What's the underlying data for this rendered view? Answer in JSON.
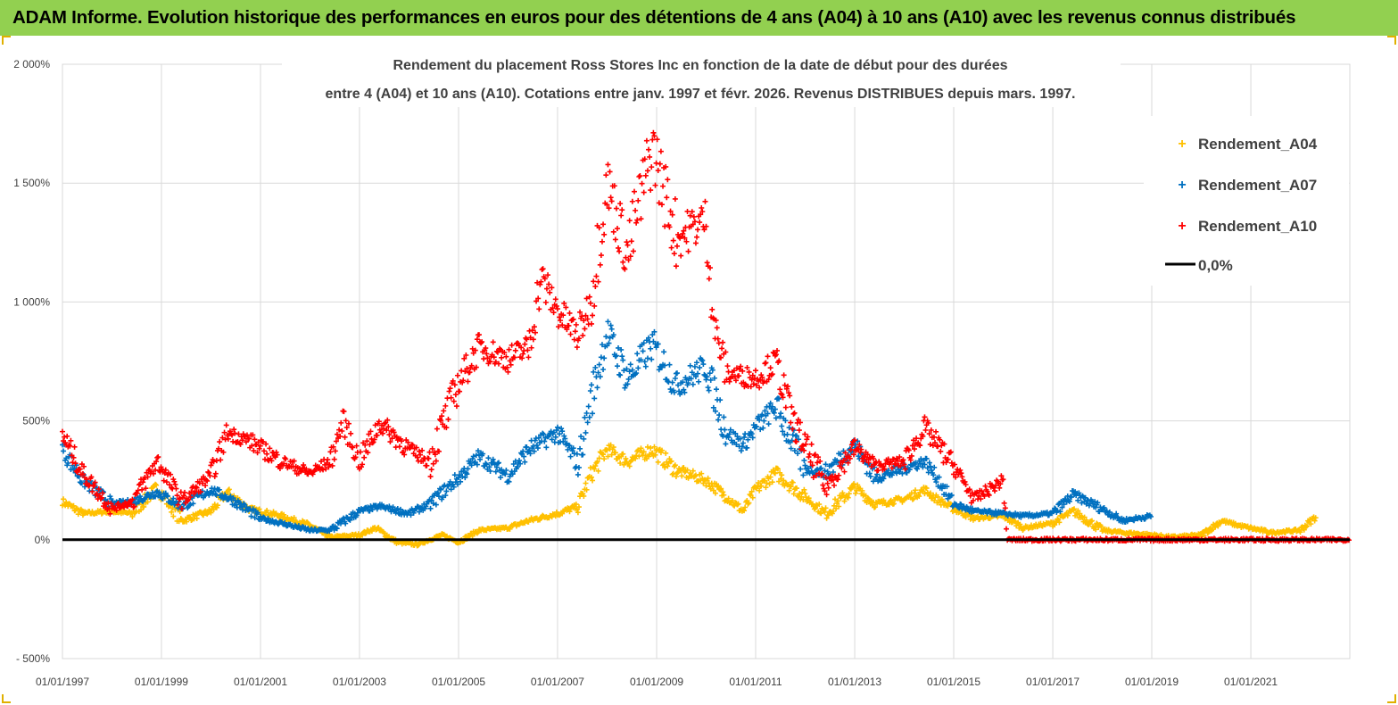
{
  "header": {
    "title": "ADAM Informe. Evolution historique des performances en euros pour des détentions de 4 ans (A04) à 10 ans (A10) avec les revenus connus distribués"
  },
  "colors": {
    "header_bg": "#92d050",
    "a04": "#ffc000",
    "a07": "#0070c0",
    "a10": "#ff0000",
    "zero": "#000000"
  },
  "chart_data": {
    "type": "scatter",
    "title_lines": [
      "Rendement du placement Ross Stores Inc en fonction de la date de début pour des durées",
      "entre 4 (A04) et 10 ans (A10).  Cotations entre janv. 1997 et févr. 2026. Revenus  DISTRIBUES depuis mars. 1997."
    ],
    "x_range": [
      "1997-01-01",
      "2023-01-01"
    ],
    "ylim": [
      -500,
      2000
    ],
    "y_ticks": [
      {
        "value": 2000,
        "label": "2 000%"
      },
      {
        "value": 1500,
        "label": "1 500%"
      },
      {
        "value": 1000,
        "label": "1 000%"
      },
      {
        "value": 500,
        "label": "500%"
      },
      {
        "value": 0,
        "label": "0%"
      },
      {
        "value": -500,
        "label": "- 500%"
      }
    ],
    "x_ticks": [
      {
        "date": "1997-01-01",
        "label": "01/01/1997"
      },
      {
        "date": "1999-01-01",
        "label": "01/01/1999"
      },
      {
        "date": "2001-01-01",
        "label": "01/01/2001"
      },
      {
        "date": "2003-01-01",
        "label": "01/01/2003"
      },
      {
        "date": "2005-01-01",
        "label": "01/01/2005"
      },
      {
        "date": "2007-01-01",
        "label": "01/01/2007"
      },
      {
        "date": "2009-01-01",
        "label": "01/01/2009"
      },
      {
        "date": "2011-01-01",
        "label": "01/01/2011"
      },
      {
        "date": "2013-01-01",
        "label": "01/01/2013"
      },
      {
        "date": "2015-01-01",
        "label": "01/01/2015"
      },
      {
        "date": "2017-01-01",
        "label": "01/01/2017"
      },
      {
        "date": "2019-01-01",
        "label": "01/01/2019"
      },
      {
        "date": "2021-01-01",
        "label": "01/01/2021"
      }
    ],
    "legend": {
      "position": "top-right",
      "entries": [
        "Rendement_A04",
        "Rendement_A07",
        "Rendement_A10",
        "0,0%"
      ]
    },
    "series": [
      {
        "name": "Rendement_A04",
        "color": "#ffc000",
        "points": [
          [
            "1997-01-01",
            160
          ],
          [
            "1997-06-01",
            110
          ],
          [
            "1998-01-01",
            120
          ],
          [
            "1998-06-01",
            110
          ],
          [
            "1998-12-01",
            220
          ],
          [
            "1999-06-01",
            80
          ],
          [
            "2000-01-01",
            120
          ],
          [
            "2000-05-01",
            200
          ],
          [
            "2000-10-01",
            130
          ],
          [
            "2001-06-01",
            100
          ],
          [
            "2002-01-01",
            60
          ],
          [
            "2002-06-01",
            10
          ],
          [
            "2003-01-01",
            20
          ],
          [
            "2003-05-01",
            50
          ],
          [
            "2003-10-01",
            -10
          ],
          [
            "2004-03-01",
            -20
          ],
          [
            "2004-09-01",
            20
          ],
          [
            "2005-01-01",
            -10
          ],
          [
            "2005-06-01",
            40
          ],
          [
            "2006-01-01",
            50
          ],
          [
            "2006-06-01",
            80
          ],
          [
            "2007-01-01",
            110
          ],
          [
            "2007-06-01",
            140
          ],
          [
            "2007-09-01",
            270
          ],
          [
            "2008-01-01",
            380
          ],
          [
            "2008-06-01",
            330
          ],
          [
            "2008-12-01",
            380
          ],
          [
            "2009-06-01",
            290
          ],
          [
            "2010-01-01",
            250
          ],
          [
            "2010-06-01",
            180
          ],
          [
            "2010-10-01",
            120
          ],
          [
            "2011-01-01",
            210
          ],
          [
            "2011-06-01",
            280
          ],
          [
            "2012-01-01",
            180
          ],
          [
            "2012-06-01",
            110
          ],
          [
            "2013-01-01",
            220
          ],
          [
            "2013-06-01",
            150
          ],
          [
            "2014-01-01",
            170
          ],
          [
            "2014-06-01",
            210
          ],
          [
            "2014-09-01",
            170
          ],
          [
            "2015-01-01",
            130
          ],
          [
            "2015-06-01",
            90
          ],
          [
            "2016-01-01",
            100
          ],
          [
            "2016-06-01",
            50
          ],
          [
            "2017-01-01",
            70
          ],
          [
            "2017-06-01",
            120
          ],
          [
            "2018-01-01",
            40
          ],
          [
            "2018-06-01",
            30
          ],
          [
            "2019-01-01",
            20
          ],
          [
            "2019-06-01",
            10
          ],
          [
            "2020-01-01",
            20
          ],
          [
            "2020-06-01",
            80
          ],
          [
            "2020-10-01",
            60
          ],
          [
            "2021-06-01",
            30
          ],
          [
            "2022-01-01",
            40
          ],
          [
            "2022-05-01",
            100
          ]
        ]
      },
      {
        "name": "Rendement_A07",
        "color": "#0070c0",
        "points": [
          [
            "1997-01-01",
            380
          ],
          [
            "1997-06-01",
            250
          ],
          [
            "1998-01-01",
            150
          ],
          [
            "1998-06-01",
            160
          ],
          [
            "1998-12-01",
            200
          ],
          [
            "1999-06-01",
            140
          ],
          [
            "2000-01-01",
            210
          ],
          [
            "2000-06-01",
            170
          ],
          [
            "2001-01-01",
            90
          ],
          [
            "2001-06-01",
            70
          ],
          [
            "2002-01-01",
            40
          ],
          [
            "2002-06-01",
            40
          ],
          [
            "2003-01-01",
            120
          ],
          [
            "2003-06-01",
            140
          ],
          [
            "2004-01-01",
            110
          ],
          [
            "2004-06-01",
            150
          ],
          [
            "2005-01-01",
            260
          ],
          [
            "2005-06-01",
            350
          ],
          [
            "2006-01-01",
            270
          ],
          [
            "2006-06-01",
            380
          ],
          [
            "2007-01-01",
            450
          ],
          [
            "2007-06-01",
            320
          ],
          [
            "2007-09-01",
            580
          ],
          [
            "2008-01-01",
            870
          ],
          [
            "2008-06-01",
            680
          ],
          [
            "2008-12-01",
            820
          ],
          [
            "2009-06-01",
            650
          ],
          [
            "2010-01-01",
            730
          ],
          [
            "2010-06-01",
            450
          ],
          [
            "2010-10-01",
            400
          ],
          [
            "2011-01-01",
            470
          ],
          [
            "2011-06-01",
            560
          ],
          [
            "2012-01-01",
            300
          ],
          [
            "2012-06-01",
            280
          ],
          [
            "2013-01-01",
            400
          ],
          [
            "2013-06-01",
            260
          ],
          [
            "2014-01-01",
            300
          ],
          [
            "2014-06-01",
            330
          ],
          [
            "2014-09-01",
            260
          ],
          [
            "2015-01-01",
            150
          ],
          [
            "2015-06-01",
            120
          ],
          [
            "2016-01-01",
            110
          ],
          [
            "2016-06-01",
            100
          ],
          [
            "2017-01-01",
            110
          ],
          [
            "2017-06-01",
            190
          ],
          [
            "2018-01-01",
            130
          ],
          [
            "2018-06-01",
            80
          ],
          [
            "2019-01-01",
            100
          ]
        ]
      },
      {
        "name": "Rendement_A10",
        "color": "#ff0000",
        "points": [
          [
            "1997-01-01",
            440
          ],
          [
            "1997-06-01",
            280
          ],
          [
            "1998-01-01",
            130
          ],
          [
            "1998-06-01",
            160
          ],
          [
            "1998-12-01",
            330
          ],
          [
            "1999-06-01",
            160
          ],
          [
            "2000-01-01",
            270
          ],
          [
            "2000-05-01",
            450
          ],
          [
            "2000-10-01",
            420
          ],
          [
            "2001-06-01",
            330
          ],
          [
            "2002-01-01",
            280
          ],
          [
            "2002-06-01",
            330
          ],
          [
            "2002-09-01",
            500
          ],
          [
            "2003-01-01",
            330
          ],
          [
            "2003-06-01",
            490
          ],
          [
            "2004-01-01",
            380
          ],
          [
            "2004-06-01",
            330
          ],
          [
            "2005-01-01",
            660
          ],
          [
            "2005-06-01",
            810
          ],
          [
            "2006-01-01",
            760
          ],
          [
            "2006-06-01",
            810
          ],
          [
            "2006-09-01",
            1100
          ],
          [
            "2007-01-01",
            960
          ],
          [
            "2007-06-01",
            860
          ],
          [
            "2007-09-01",
            1000
          ],
          [
            "2008-01-01",
            1500
          ],
          [
            "2008-06-01",
            1200
          ],
          [
            "2008-12-01",
            1650
          ],
          [
            "2009-06-01",
            1270
          ],
          [
            "2010-01-01",
            1350
          ],
          [
            "2010-03-01",
            900
          ],
          [
            "2010-06-01",
            700
          ],
          [
            "2011-01-01",
            680
          ],
          [
            "2011-06-01",
            750
          ],
          [
            "2011-10-01",
            500
          ],
          [
            "2012-06-01",
            220
          ],
          [
            "2013-01-01",
            390
          ],
          [
            "2013-06-01",
            310
          ],
          [
            "2014-01-01",
            330
          ],
          [
            "2014-06-01",
            470
          ],
          [
            "2015-01-01",
            310
          ],
          [
            "2015-06-01",
            170
          ],
          [
            "2016-01-01",
            250
          ],
          [
            "2016-02-01",
            0
          ],
          [
            "2023-01-01",
            0
          ]
        ]
      }
    ]
  }
}
